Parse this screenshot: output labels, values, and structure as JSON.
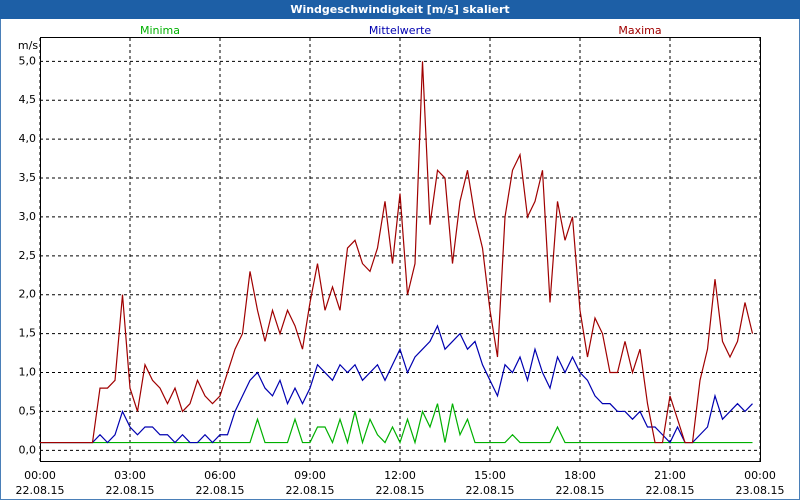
{
  "chart_data": {
    "type": "line",
    "title": "Windgeschwindigkeit [m/s] skaliert",
    "y_label": "m/s",
    "x": [
      0,
      0.25,
      0.5,
      0.75,
      1,
      1.25,
      1.5,
      1.75,
      2,
      2.25,
      2.5,
      2.75,
      3,
      3.25,
      3.5,
      3.75,
      4,
      4.25,
      4.5,
      4.75,
      5,
      5.25,
      5.5,
      5.75,
      6,
      6.25,
      6.5,
      6.75,
      7,
      7.25,
      7.5,
      7.75,
      8,
      8.25,
      8.5,
      8.75,
      9,
      9.25,
      9.5,
      9.75,
      10,
      10.25,
      10.5,
      10.75,
      11,
      11.25,
      11.5,
      11.75,
      12,
      12.25,
      12.5,
      12.75,
      13,
      13.25,
      13.5,
      13.75,
      14,
      14.25,
      14.5,
      14.75,
      15,
      15.25,
      15.5,
      15.75,
      16,
      16.25,
      16.5,
      16.75,
      17,
      17.25,
      17.5,
      17.75,
      18,
      18.25,
      18.5,
      18.75,
      19,
      19.25,
      19.5,
      19.75,
      20,
      20.25,
      20.5,
      20.75,
      21,
      21.25,
      21.5,
      21.75,
      22,
      22.25,
      22.5,
      22.75,
      23,
      23.25,
      23.5,
      23.75
    ],
    "series": [
      {
        "name": "Minima",
        "color": "#00b000",
        "values": [
          0.1,
          0.1,
          0.1,
          0.1,
          0.1,
          0.1,
          0.1,
          0.1,
          0.1,
          0.1,
          0.1,
          0.1,
          0.1,
          0.1,
          0.1,
          0.1,
          0.1,
          0.1,
          0.1,
          0.1,
          0.1,
          0.1,
          0.1,
          0.1,
          0.1,
          0.1,
          0.1,
          0.1,
          0.1,
          0.4,
          0.1,
          0.1,
          0.1,
          0.1,
          0.4,
          0.1,
          0.1,
          0.3,
          0.3,
          0.1,
          0.4,
          0.1,
          0.5,
          0.1,
          0.4,
          0.2,
          0.1,
          0.3,
          0.1,
          0.4,
          0.1,
          0.5,
          0.3,
          0.6,
          0.1,
          0.6,
          0.2,
          0.4,
          0.1,
          0.1,
          0.1,
          0.1,
          0.1,
          0.2,
          0.1,
          0.1,
          0.1,
          0.1,
          0.1,
          0.3,
          0.1,
          0.1,
          0.1,
          0.1,
          0.1,
          0.1,
          0.1,
          0.1,
          0.1,
          0.1,
          0.1,
          0.1,
          0.1,
          0.1,
          0.1,
          0.1,
          0.1,
          0.1,
          0.1,
          0.1,
          0.1,
          0.1,
          0.1,
          0.1,
          0.1,
          0.1
        ]
      },
      {
        "name": "Mittelwerte",
        "color": "#0000b0",
        "values": [
          0.1,
          0.1,
          0.1,
          0.1,
          0.1,
          0.1,
          0.1,
          0.1,
          0.2,
          0.1,
          0.2,
          0.5,
          0.3,
          0.2,
          0.3,
          0.3,
          0.2,
          0.2,
          0.1,
          0.2,
          0.1,
          0.1,
          0.2,
          0.1,
          0.2,
          0.2,
          0.5,
          0.7,
          0.9,
          1.0,
          0.8,
          0.7,
          0.9,
          0.6,
          0.8,
          0.6,
          0.8,
          1.1,
          1.0,
          0.9,
          1.1,
          1.0,
          1.1,
          0.9,
          1.0,
          1.1,
          0.9,
          1.1,
          1.3,
          1.0,
          1.2,
          1.3,
          1.4,
          1.6,
          1.3,
          1.4,
          1.5,
          1.3,
          1.4,
          1.1,
          0.9,
          0.7,
          1.1,
          1.0,
          1.2,
          0.9,
          1.3,
          1.0,
          0.8,
          1.2,
          1.0,
          1.2,
          1.0,
          0.9,
          0.7,
          0.6,
          0.6,
          0.5,
          0.5,
          0.4,
          0.5,
          0.3,
          0.3,
          0.2,
          0.1,
          0.3,
          0.1,
          0.1,
          0.2,
          0.3,
          0.7,
          0.4,
          0.5,
          0.6,
          0.5,
          0.6
        ]
      },
      {
        "name": "Maxima",
        "color": "#a00000",
        "values": [
          0.1,
          0.1,
          0.1,
          0.1,
          0.1,
          0.1,
          0.1,
          0.1,
          0.8,
          0.8,
          0.9,
          2.0,
          0.8,
          0.5,
          1.1,
          0.9,
          0.8,
          0.6,
          0.8,
          0.5,
          0.6,
          0.9,
          0.7,
          0.6,
          0.7,
          1.0,
          1.3,
          1.5,
          2.3,
          1.8,
          1.4,
          1.8,
          1.5,
          1.8,
          1.6,
          1.3,
          1.9,
          2.4,
          1.8,
          2.1,
          1.8,
          2.6,
          2.7,
          2.4,
          2.3,
          2.6,
          3.2,
          2.4,
          3.3,
          2.0,
          2.4,
          5.0,
          2.9,
          3.6,
          3.5,
          2.4,
          3.2,
          3.6,
          3.0,
          2.6,
          1.8,
          1.2,
          3.0,
          3.6,
          3.8,
          3.0,
          3.2,
          3.6,
          1.9,
          3.2,
          2.7,
          3.0,
          1.8,
          1.2,
          1.7,
          1.5,
          1.0,
          1.0,
          1.4,
          1.0,
          1.3,
          0.6,
          0.1,
          0.1,
          0.7,
          0.4,
          0.1,
          0.1,
          0.9,
          1.3,
          2.2,
          1.4,
          1.2,
          1.4,
          1.9,
          1.5
        ]
      }
    ],
    "xlim": [
      0,
      24
    ],
    "xticks": [
      {
        "value": 0,
        "label": "00:00"
      },
      {
        "value": 3,
        "label": "03:00"
      },
      {
        "value": 6,
        "label": "06:00"
      },
      {
        "value": 9,
        "label": "09:00"
      },
      {
        "value": 12,
        "label": "12:00"
      },
      {
        "value": 15,
        "label": "15:00"
      },
      {
        "value": 18,
        "label": "18:00"
      },
      {
        "value": 21,
        "label": "21:00"
      },
      {
        "value": 24,
        "label": "00:00"
      }
    ],
    "xtick_dates": [
      "22.08.15",
      "22.08.15",
      "22.08.15",
      "22.08.15",
      "22.08.15",
      "22.08.15",
      "22.08.15",
      "22.08.15",
      "23.08.15"
    ],
    "ylim": [
      -0.15,
      5.3
    ],
    "yticks": [
      {
        "value": 0,
        "label": "0,0"
      },
      {
        "value": 0.5,
        "label": "0,5"
      },
      {
        "value": 1,
        "label": "1,0"
      },
      {
        "value": 1.5,
        "label": "1,5"
      },
      {
        "value": 2,
        "label": "2,0"
      },
      {
        "value": 2.5,
        "label": "2,5"
      },
      {
        "value": 3,
        "label": "3,0"
      },
      {
        "value": 3.5,
        "label": "3,5"
      },
      {
        "value": 4,
        "label": "4,0"
      },
      {
        "value": 4.5,
        "label": "4,5"
      },
      {
        "value": 5,
        "label": "5,0"
      }
    ],
    "grid": true
  }
}
